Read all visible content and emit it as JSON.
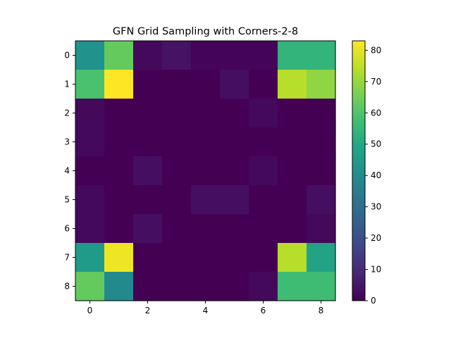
{
  "chart_data": {
    "type": "heatmap",
    "title": "GFN Grid Sampling with Corners-2-8",
    "xlabel": "",
    "ylabel": "",
    "rows": 9,
    "cols": 9,
    "x_ticks": [
      0,
      2,
      4,
      6,
      8
    ],
    "y_ticks": [
      0,
      1,
      2,
      3,
      4,
      5,
      6,
      7,
      8
    ],
    "colormap": "viridis",
    "colorbar": {
      "min": 0,
      "max": 83,
      "ticks": [
        0,
        10,
        20,
        30,
        40,
        50,
        60,
        70,
        80
      ]
    },
    "grid": false,
    "values": [
      [
        42,
        63,
        2,
        4,
        1,
        1,
        1,
        54,
        54
      ],
      [
        59,
        83,
        0,
        0,
        0,
        3,
        0,
        74,
        69
      ],
      [
        2,
        0,
        0,
        0,
        0,
        0,
        2,
        0,
        0
      ],
      [
        2,
        0,
        0,
        0,
        0,
        0,
        0,
        0,
        0
      ],
      [
        0,
        0,
        3,
        0,
        0,
        0,
        2,
        0,
        0
      ],
      [
        2,
        0,
        0,
        0,
        3,
        3,
        0,
        0,
        3
      ],
      [
        2,
        0,
        3,
        0,
        0,
        0,
        0,
        0,
        2
      ],
      [
        45,
        81,
        0,
        0,
        0,
        0,
        0,
        74,
        48
      ],
      [
        63,
        39,
        0,
        0,
        0,
        0,
        2,
        57,
        57
      ]
    ]
  }
}
